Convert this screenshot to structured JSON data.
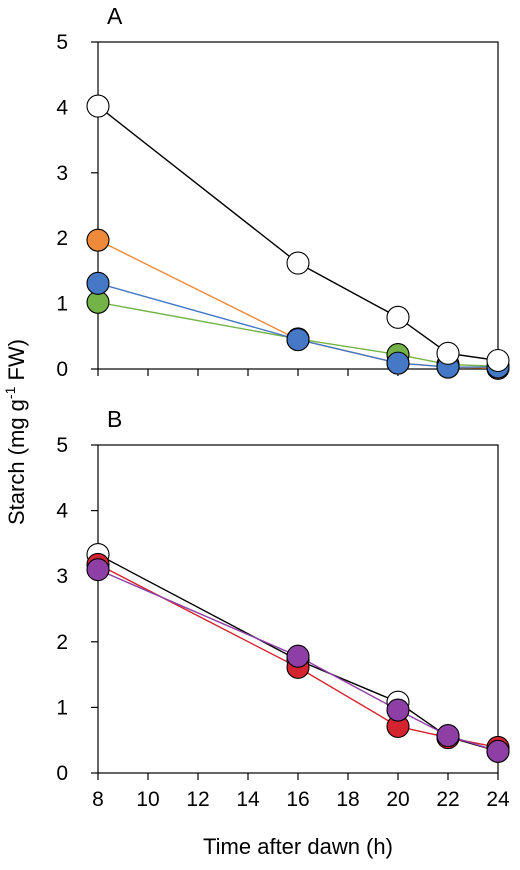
{
  "figure": {
    "ylabel_main": "Starch (mg g",
    "ylabel_sup": "-1",
    "ylabel_tail": " FW)",
    "xlabel": "Time after dawn (h)"
  },
  "chart_data": [
    {
      "type": "line",
      "panel": "A",
      "x": [
        8,
        16,
        20,
        22,
        24
      ],
      "xlim": [
        8,
        24
      ],
      "xticks": [
        8,
        10,
        12,
        14,
        16,
        18,
        20,
        22,
        24
      ],
      "ylim": [
        0,
        5
      ],
      "yticks": [
        0,
        1,
        2,
        3,
        4,
        5
      ],
      "grid": false,
      "series": [
        {
          "color": "#ef8a3a",
          "values": [
            1.97,
            0.45,
            0.09,
            0.03,
            0.01
          ]
        },
        {
          "color": "#74b347",
          "values": [
            1.02,
            0.46,
            0.22,
            0.07,
            0.04
          ]
        },
        {
          "color": "#4679c5",
          "values": [
            1.31,
            0.45,
            0.09,
            0.03,
            0.03
          ]
        },
        {
          "color": "#ffffff",
          "values": [
            4.02,
            1.62,
            0.79,
            0.24,
            0.13
          ]
        }
      ]
    },
    {
      "type": "line",
      "panel": "B",
      "x": [
        8,
        16,
        20,
        22,
        24
      ],
      "xlim": [
        8,
        24
      ],
      "xticks": [
        8,
        10,
        12,
        14,
        16,
        18,
        20,
        22,
        24
      ],
      "ylim": [
        0,
        5
      ],
      "yticks": [
        0,
        1,
        2,
        3,
        4,
        5
      ],
      "grid": false,
      "series": [
        {
          "color": "#ffffff",
          "values": [
            3.33,
            1.72,
            1.08,
            0.55,
            0.33
          ]
        },
        {
          "color": "#d4242f",
          "values": [
            3.18,
            1.61,
            0.71,
            0.54,
            0.39
          ]
        },
        {
          "color": "#8e3fa5",
          "values": [
            3.1,
            1.78,
            0.96,
            0.57,
            0.33
          ]
        }
      ]
    }
  ]
}
